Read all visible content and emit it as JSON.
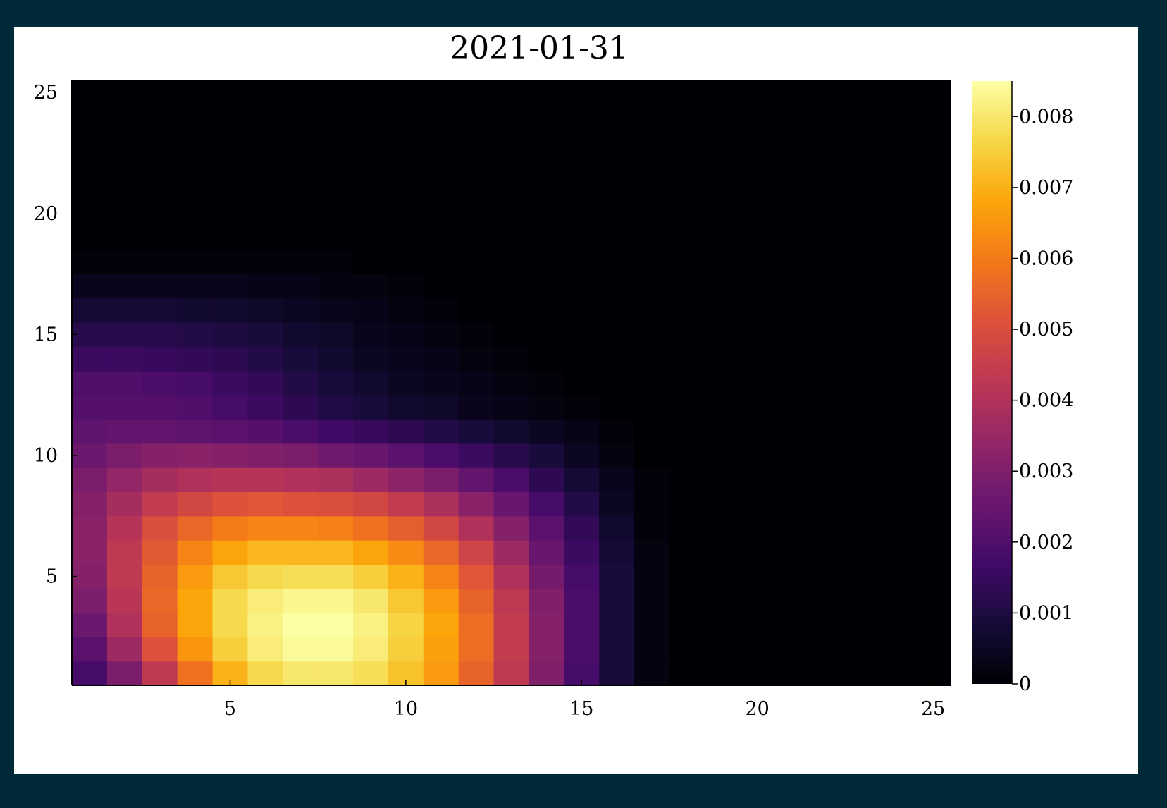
{
  "page": {
    "background": "#012a38",
    "panel_background": "#ffffff"
  },
  "chart_data": {
    "type": "heatmap",
    "title": "2021-01-31",
    "xlabel": "",
    "ylabel": "",
    "xlim": [
      0.5,
      25.5
    ],
    "ylim": [
      0.5,
      25.5
    ],
    "xticks": [
      5,
      10,
      15,
      20,
      25
    ],
    "yticks": [
      5,
      10,
      15,
      20,
      25
    ],
    "colormap": "inferno",
    "clim": [
      0,
      0.0085
    ],
    "colorbar_ticks": [
      0,
      0.001,
      0.002,
      0.003,
      0.004,
      0.005,
      0.006,
      0.007,
      0.008
    ],
    "colorbar_tick_labels": [
      "0",
      "0.001",
      "0.002",
      "0.003",
      "0.004",
      "0.005",
      "0.006",
      "0.007",
      "0.008"
    ],
    "grid": false,
    "peak": {
      "x": 7.5,
      "y": 2.5,
      "value": 0.0085
    },
    "rows_note": "z[row y=1..25][col x=1..25]",
    "z": [
      [
        0.0018,
        0.0029,
        0.0043,
        0.0058,
        0.007,
        0.0077,
        0.008,
        0.008,
        0.0078,
        0.0073,
        0.0066,
        0.0055,
        0.0043,
        0.003,
        0.0018,
        0.0009,
        0.0002,
        0,
        0,
        0,
        0,
        0,
        0,
        0,
        0
      ],
      [
        0.0022,
        0.0036,
        0.0051,
        0.0065,
        0.0075,
        0.0081,
        0.0084,
        0.0084,
        0.0081,
        0.0075,
        0.0067,
        0.0057,
        0.0044,
        0.0031,
        0.0019,
        0.0009,
        0.0002,
        0,
        0,
        0,
        0,
        0,
        0,
        0,
        0
      ],
      [
        0.0026,
        0.004,
        0.0055,
        0.0068,
        0.0077,
        0.0082,
        0.0085,
        0.0085,
        0.0082,
        0.0076,
        0.0068,
        0.0057,
        0.0044,
        0.0031,
        0.0019,
        0.0009,
        0.0002,
        0,
        0,
        0,
        0,
        0,
        0,
        0,
        0
      ],
      [
        0.0029,
        0.0042,
        0.0056,
        0.0068,
        0.0077,
        0.0081,
        0.0083,
        0.0083,
        0.008,
        0.0074,
        0.0066,
        0.0055,
        0.0043,
        0.003,
        0.0019,
        0.0009,
        0.0002,
        0,
        0,
        0,
        0,
        0,
        0,
        0,
        0
      ],
      [
        0.0031,
        0.0043,
        0.0055,
        0.0066,
        0.0074,
        0.0077,
        0.0078,
        0.0078,
        0.0075,
        0.007,
        0.0062,
        0.0052,
        0.004,
        0.0028,
        0.0018,
        0.0009,
        0.0002,
        0,
        0,
        0,
        0,
        0,
        0,
        0,
        0
      ],
      [
        0.0032,
        0.0043,
        0.0053,
        0.0062,
        0.0068,
        0.0071,
        0.0071,
        0.0071,
        0.0068,
        0.0063,
        0.0056,
        0.0047,
        0.0036,
        0.0025,
        0.0016,
        0.0008,
        0.0002,
        0,
        0,
        0,
        0,
        0,
        0,
        0,
        0
      ],
      [
        0.0032,
        0.0041,
        0.005,
        0.0056,
        0.006,
        0.0062,
        0.0062,
        0.0061,
        0.0058,
        0.0054,
        0.0048,
        0.004,
        0.0031,
        0.0022,
        0.0014,
        0.0007,
        0.0001,
        0,
        0,
        0,
        0,
        0,
        0,
        0,
        0
      ],
      [
        0.0031,
        0.0038,
        0.0044,
        0.0048,
        0.0051,
        0.0052,
        0.0051,
        0.005,
        0.0048,
        0.0044,
        0.0039,
        0.0032,
        0.0025,
        0.0018,
        0.0011,
        0.0005,
        0.0001,
        0,
        0,
        0,
        0,
        0,
        0,
        0,
        0
      ],
      [
        0.0029,
        0.0034,
        0.0038,
        0.004,
        0.0041,
        0.0041,
        0.004,
        0.0039,
        0.0036,
        0.0033,
        0.0029,
        0.0024,
        0.0019,
        0.0013,
        0.0008,
        0.0004,
        0.0001,
        0,
        0,
        0,
        0,
        0,
        0,
        0,
        0
      ],
      [
        0.0026,
        0.0029,
        0.0031,
        0.0032,
        0.0031,
        0.003,
        0.0029,
        0.0027,
        0.0025,
        0.0022,
        0.0019,
        0.0016,
        0.0012,
        0.0009,
        0.0005,
        0.0002,
        0,
        0,
        0,
        0,
        0,
        0,
        0,
        0,
        0
      ],
      [
        0.0023,
        0.0024,
        0.0024,
        0.0023,
        0.0022,
        0.0021,
        0.0019,
        0.0017,
        0.0015,
        0.0013,
        0.0011,
        0.0009,
        0.0007,
        0.0005,
        0.0003,
        0.0001,
        0,
        0,
        0,
        0,
        0,
        0,
        0,
        0,
        0
      ],
      [
        0.0021,
        0.0021,
        0.0021,
        0.002,
        0.0018,
        0.0016,
        0.0013,
        0.0011,
        0.0009,
        0.0007,
        0.0006,
        0.0004,
        0.0003,
        0.0002,
        0.0001,
        0,
        0,
        0,
        0,
        0,
        0,
        0,
        0,
        0,
        0
      ],
      [
        0.002,
        0.002,
        0.0019,
        0.0018,
        0.0016,
        0.0014,
        0.0011,
        0.0009,
        0.0007,
        0.0005,
        0.0004,
        0.0003,
        0.0002,
        0.0001,
        0,
        0,
        0,
        0,
        0,
        0,
        0,
        0,
        0,
        0,
        0
      ],
      [
        0.0016,
        0.0016,
        0.0015,
        0.0014,
        0.0013,
        0.0011,
        0.0009,
        0.0007,
        0.0005,
        0.0004,
        0.0003,
        0.0002,
        0.0001,
        0,
        0,
        0,
        0,
        0,
        0,
        0,
        0,
        0,
        0,
        0,
        0
      ],
      [
        0.0012,
        0.0012,
        0.0012,
        0.0011,
        0.001,
        0.0009,
        0.0007,
        0.0006,
        0.0004,
        0.0003,
        0.0002,
        0.0001,
        0,
        0,
        0,
        0,
        0,
        0,
        0,
        0,
        0,
        0,
        0,
        0,
        0
      ],
      [
        0.0008,
        0.0008,
        0.0008,
        0.0007,
        0.0007,
        0.0006,
        0.0005,
        0.0004,
        0.0003,
        0.0002,
        0.0001,
        0,
        0,
        0,
        0,
        0,
        0,
        0,
        0,
        0,
        0,
        0,
        0,
        0,
        0
      ],
      [
        0.0004,
        0.0004,
        0.0004,
        0.0004,
        0.0004,
        0.0003,
        0.0003,
        0.0002,
        0.0002,
        0.0001,
        0,
        0,
        0,
        0,
        0,
        0,
        0,
        0,
        0,
        0,
        0,
        0,
        0,
        0,
        0
      ],
      [
        0.0001,
        0.0001,
        0.0001,
        0.0001,
        0.0001,
        0.0001,
        0.0001,
        0.0001,
        0,
        0,
        0,
        0,
        0,
        0,
        0,
        0,
        0,
        0,
        0,
        0,
        0,
        0,
        0,
        0,
        0
      ],
      [
        0,
        0,
        0,
        0,
        0,
        0,
        0,
        0,
        0,
        0,
        0,
        0,
        0,
        0,
        0,
        0,
        0,
        0,
        0,
        0,
        0,
        0,
        0,
        0,
        0
      ],
      [
        0,
        0,
        0,
        0,
        0,
        0,
        0,
        0,
        0,
        0,
        0,
        0,
        0,
        0,
        0,
        0,
        0,
        0,
        0,
        0,
        0,
        0,
        0,
        0,
        0
      ],
      [
        0,
        0,
        0,
        0,
        0,
        0,
        0,
        0,
        0,
        0,
        0,
        0,
        0,
        0,
        0,
        0,
        0,
        0,
        0,
        0,
        0,
        0,
        0,
        0,
        0
      ],
      [
        0,
        0,
        0,
        0,
        0,
        0,
        0,
        0,
        0,
        0,
        0,
        0,
        0,
        0,
        0,
        0,
        0,
        0,
        0,
        0,
        0,
        0,
        0,
        0,
        0
      ],
      [
        0,
        0,
        0,
        0,
        0,
        0,
        0,
        0,
        0,
        0,
        0,
        0,
        0,
        0,
        0,
        0,
        0,
        0,
        0,
        0,
        0,
        0,
        0,
        0,
        0
      ],
      [
        0,
        0,
        0,
        0,
        0,
        0,
        0,
        0,
        0,
        0,
        0,
        0,
        0,
        0,
        0,
        0,
        0,
        0,
        0,
        0,
        0,
        0,
        0,
        0,
        0
      ],
      [
        0,
        0,
        0,
        0,
        0,
        0,
        0,
        0,
        0,
        0,
        0,
        0,
        0,
        0,
        0,
        0,
        0,
        0,
        0,
        0,
        0,
        0,
        0,
        0,
        0
      ]
    ]
  }
}
